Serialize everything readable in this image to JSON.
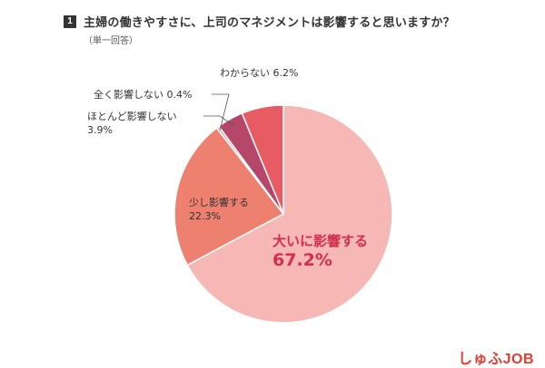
{
  "question_number": "1",
  "title": "主婦の働きやすさに、上司のマネジメントは影響すると思いますか？",
  "subtitle": "（単一回答）",
  "brand": "しゅふJOB",
  "colors": {
    "slice_1": "#f5b8b5",
    "slice_2": "#ee8070",
    "slice_3": "#e4a2b2",
    "slice_4": "#b5476b",
    "slice_5": "#e85b63",
    "accent_label": "#d22f4a",
    "separator": "#ffffff"
  },
  "chart_data": {
    "type": "pie",
    "start": "12 o'clock",
    "direction": "clockwise",
    "slices": [
      {
        "label": "大いに影響する",
        "value": 67.2,
        "value_label": "67.2%"
      },
      {
        "label": "少し影響する",
        "value": 22.3,
        "value_label": "22.3%"
      },
      {
        "label": "全く影響しない",
        "value": 0.4,
        "value_label": "0.4%"
      },
      {
        "label": "ほとんど影響しない",
        "value": 3.9,
        "value_label": "3.9%"
      },
      {
        "label": "わからない",
        "value": 6.2,
        "value_label": "6.2%"
      }
    ]
  }
}
